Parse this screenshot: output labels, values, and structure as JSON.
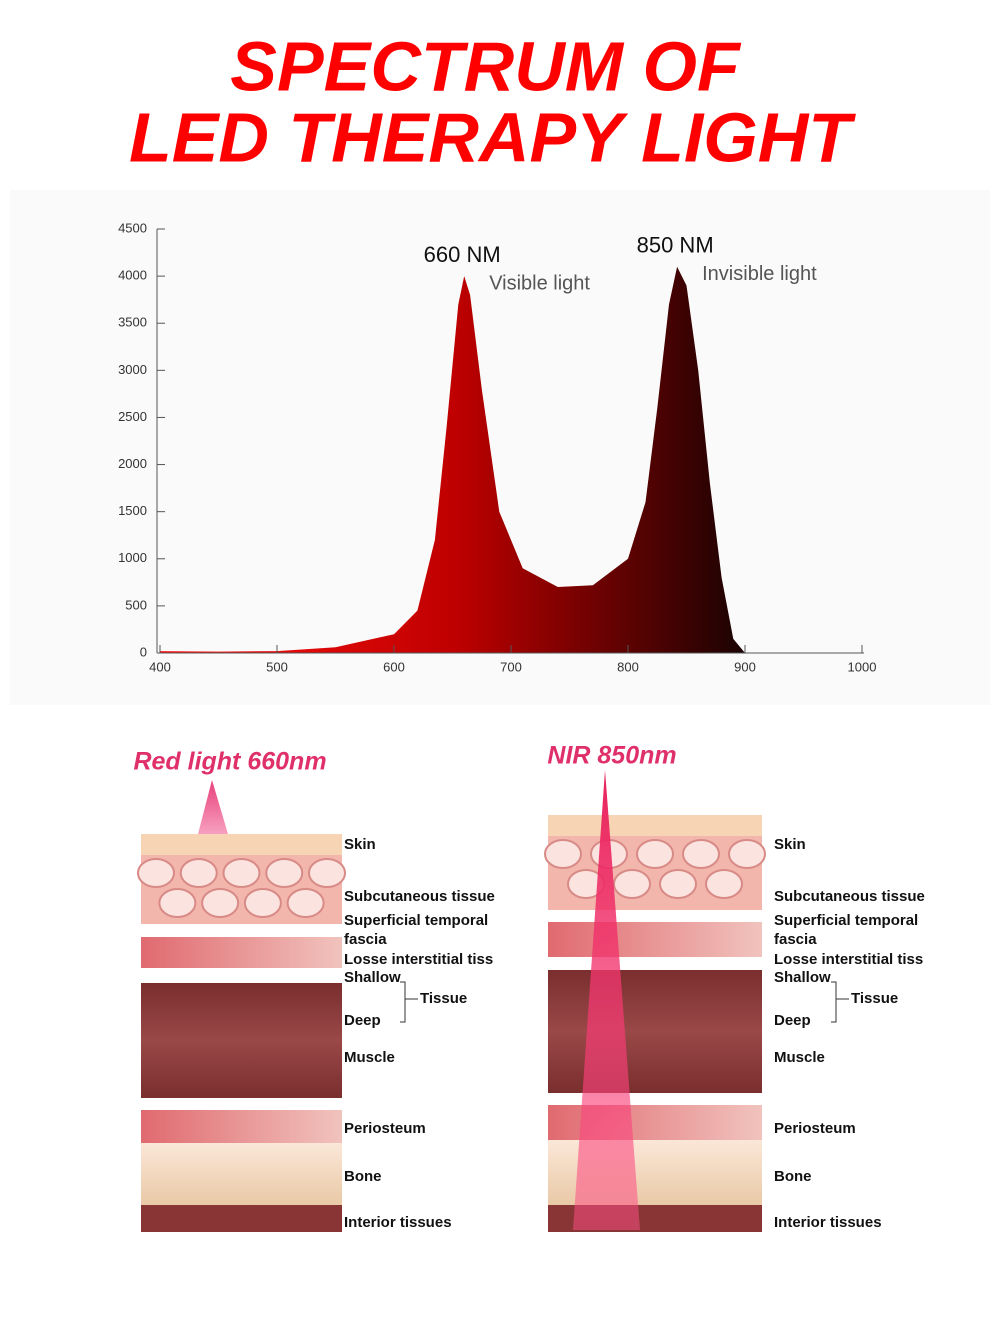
{
  "header": {
    "title_lines": [
      "SPECTRUM OF",
      "LED THERAPY LIGHT"
    ]
  },
  "chart_data": {
    "type": "area",
    "x": [
      400,
      450,
      500,
      550,
      600,
      620,
      635,
      645,
      655,
      660,
      665,
      675,
      690,
      710,
      740,
      770,
      800,
      815,
      825,
      835,
      842,
      850,
      860,
      870,
      880,
      890,
      900
    ],
    "values": [
      20,
      15,
      20,
      60,
      200,
      450,
      1200,
      2400,
      3700,
      4000,
      3800,
      2800,
      1500,
      900,
      700,
      720,
      1000,
      1600,
      2600,
      3700,
      4100,
      3900,
      3000,
      1800,
      800,
      150,
      0
    ],
    "colors": [
      "#ff1010",
      "#c00000",
      "#1a0303"
    ],
    "xlim": [
      400,
      1000
    ],
    "ylim": [
      0,
      4500
    ],
    "xticks": [
      400,
      500,
      600,
      700,
      800,
      900,
      1000
    ],
    "yticks": [
      0,
      500,
      1000,
      1500,
      2000,
      2500,
      3000,
      3500,
      4000,
      4500
    ],
    "annotations": [
      {
        "x": 660,
        "y": 4000,
        "label": "660 NM",
        "note": "Visible light"
      },
      {
        "x": 842,
        "y": 4100,
        "label": "850 NM",
        "note": "Invisible light"
      }
    ]
  },
  "diagram": {
    "panels": [
      {
        "title": "Red light 660nm"
      },
      {
        "title": "NIR 850nm"
      }
    ],
    "layer_labels": [
      "Skin",
      "Subcutaneous tissue",
      "Superficial temporal",
      "fascia",
      "Losse interstitial tiss",
      "Shallow",
      "Tissue",
      "Deep",
      "Muscle",
      "Periosteum",
      "Bone",
      "Interior tissues"
    ]
  }
}
